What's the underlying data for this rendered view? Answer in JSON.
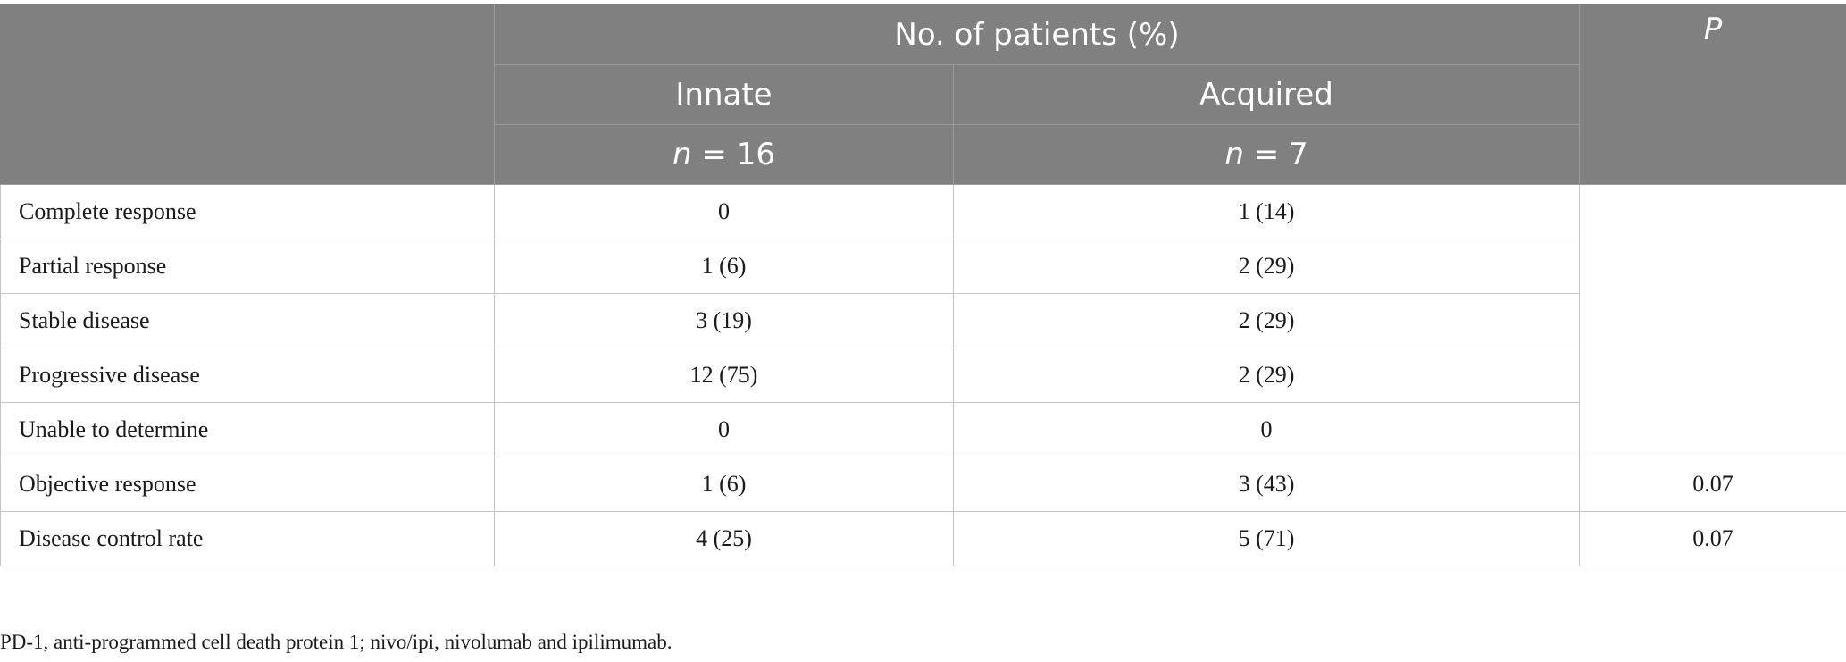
{
  "header": {
    "group_title": "No. of patients (%)",
    "p_label": "P",
    "columns": [
      {
        "label": "Innate",
        "n_label": "n",
        "n_value": "= 16"
      },
      {
        "label": "Acquired",
        "n_label": "n",
        "n_value": "= 7"
      }
    ]
  },
  "rows": [
    {
      "label": "Complete response",
      "innate": "0",
      "acquired": "1 (14)",
      "p": ""
    },
    {
      "label": "Partial response",
      "innate": "1 (6)",
      "acquired": "2 (29)",
      "p": ""
    },
    {
      "label": "Stable disease",
      "innate": "3 (19)",
      "acquired": "2 (29)",
      "p": ""
    },
    {
      "label": "Progressive disease",
      "innate": "12 (75)",
      "acquired": "2 (29)",
      "p": ""
    },
    {
      "label": "Unable to determine",
      "innate": "0",
      "acquired": "0",
      "p": ""
    },
    {
      "label": "Objective response",
      "innate": "1 (6)",
      "acquired": "3 (43)",
      "p": "0.07"
    },
    {
      "label": "Disease control rate",
      "innate": "4 (25)",
      "acquired": "5 (71)",
      "p": "0.07"
    }
  ],
  "footnote": "PD-1, anti-programmed cell death protein 1; nivo/ipi, nivolumab and ipilimumab."
}
